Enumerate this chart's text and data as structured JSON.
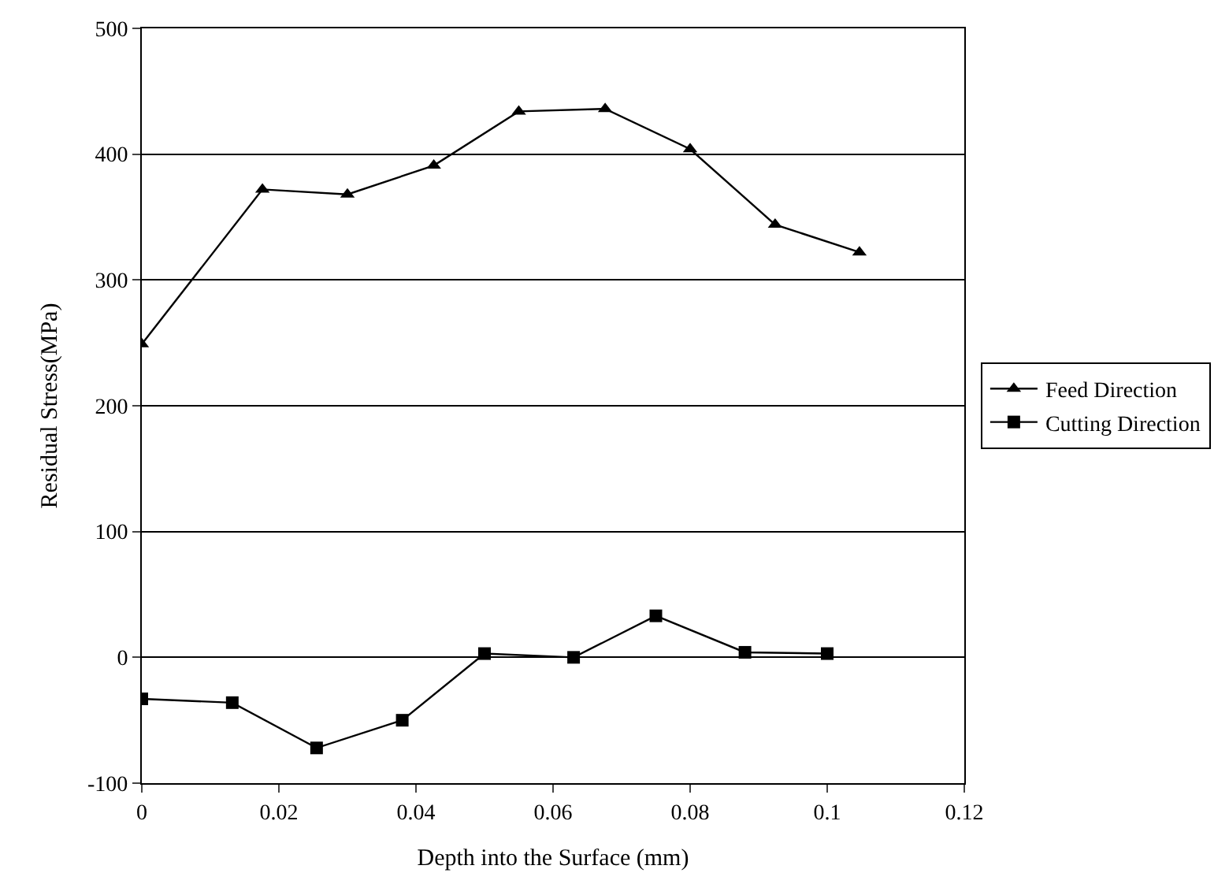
{
  "chart_data": {
    "type": "line",
    "xlabel": "Depth into the Surface (mm)",
    "ylabel": "Residual Stress(MPa)",
    "xlim": [
      0,
      0.12
    ],
    "xticks": [
      0,
      0.02,
      0.04,
      0.06,
      0.08,
      0.1,
      0.12
    ],
    "ylim": [
      -100,
      500
    ],
    "yticks": [
      -100,
      0,
      100,
      200,
      300,
      400,
      500
    ],
    "grid": "y",
    "legend": "right",
    "series": [
      {
        "name": "Feed Direction",
        "color": "#000000",
        "marker": "triangle",
        "x": [
          0,
          0.0176,
          0.03,
          0.0426,
          0.055,
          0.0676,
          0.08,
          0.0924,
          0.1047
        ],
        "values": [
          249,
          372,
          368,
          391,
          434,
          436,
          404,
          344,
          322
        ]
      },
      {
        "name": "Cutting Direction",
        "color": "#000000",
        "marker": "square",
        "x": [
          0,
          0.0132,
          0.0255,
          0.038,
          0.05,
          0.063,
          0.075,
          0.088,
          0.1
        ],
        "values": [
          -33,
          -36,
          -72,
          -50,
          3,
          0,
          33,
          4,
          3
        ]
      }
    ]
  }
}
